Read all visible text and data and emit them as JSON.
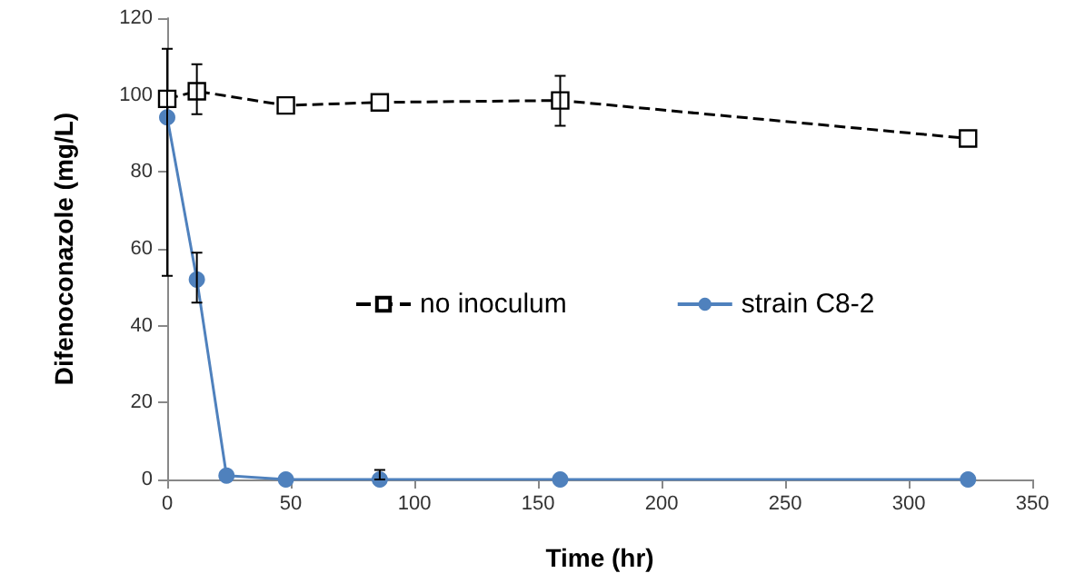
{
  "chart_data": {
    "type": "line",
    "xlabel": "Time (hr)",
    "ylabel": "Difenoconazole (mg/L)",
    "x": [
      0,
      12,
      24,
      48,
      86,
      159,
      324
    ],
    "series": [
      {
        "name": "no inoculum",
        "color": "#000000",
        "marker": "square",
        "line_style": "dashed",
        "x": [
          0,
          12,
          48,
          86,
          159,
          324
        ],
        "values": [
          99,
          101,
          97.3,
          98.1,
          98.6,
          88.7
        ],
        "errors": [
          null,
          [
            95,
            108
          ],
          null,
          null,
          [
            92,
            105
          ],
          null
        ]
      },
      {
        "name": "strain C8-2",
        "color": "#4f81bd",
        "marker": "circle",
        "line_style": "solid",
        "values": [
          94.2,
          52,
          1,
          0,
          0,
          0,
          0
        ],
        "errors": [
          [
            53,
            112
          ],
          [
            46,
            59
          ],
          null,
          null,
          [
            0,
            2.5
          ],
          null,
          null
        ]
      }
    ],
    "xlim": [
      0,
      350
    ],
    "xticks": [
      0,
      50,
      100,
      150,
      200,
      250,
      300,
      350
    ],
    "ylim": [
      0,
      120
    ],
    "yticks": [
      0,
      20,
      40,
      60,
      80,
      100,
      120
    ],
    "grid": false,
    "legend": "center"
  }
}
